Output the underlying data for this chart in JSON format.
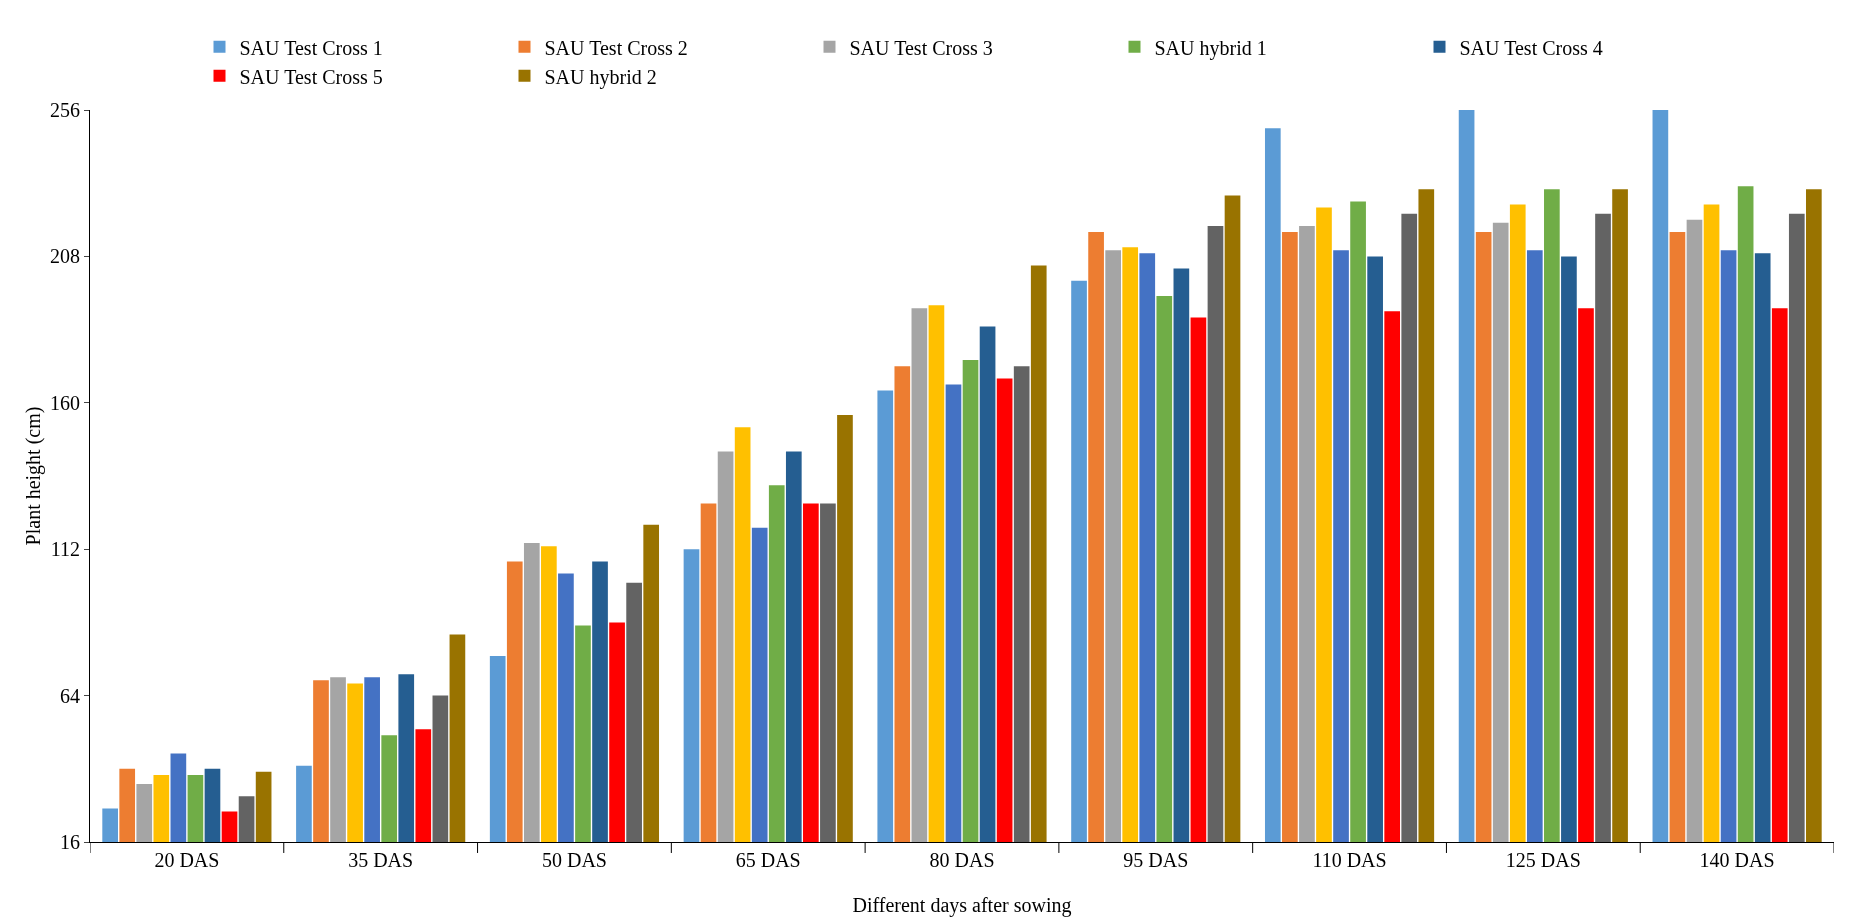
{
  "chart_data": {
    "type": "bar",
    "xlabel": "Different days after sowing",
    "ylabel": "Plant height (cm)",
    "categories": [
      "20 DAS",
      "35 DAS",
      "50 DAS",
      "65 DAS",
      "80 DAS",
      "95 DAS",
      "110 DAS",
      "125 DAS",
      "140 DAS"
    ],
    "ylim": [
      16,
      256
    ],
    "yticks": [
      16,
      64,
      112,
      160,
      208,
      256
    ],
    "grid": false,
    "legend": "top",
    "series": [
      {
        "name": "SAU Test Cross 1",
        "color": "#5b9bd5",
        "values": [
          27,
          41,
          77,
          112,
          164,
          200,
          250,
          256,
          256
        ]
      },
      {
        "name": "SAU Test Cross 2",
        "color": "#ed7d31",
        "values": [
          40,
          69,
          108,
          127,
          172,
          216,
          216,
          216,
          216
        ]
      },
      {
        "name": "SAU Test Cross 3",
        "color": "#a5a5a5",
        "values": [
          35,
          70,
          114,
          144,
          191,
          210,
          218,
          219,
          220
        ]
      },
      {
        "color": "#ffc000",
        "values": [
          38,
          68,
          113,
          152,
          192,
          211,
          224,
          225,
          225
        ]
      },
      {
        "color": "#4472c4",
        "values": [
          45,
          70,
          104,
          119,
          166,
          209,
          210,
          210,
          210
        ]
      },
      {
        "name": "SAU hybrid 1",
        "color": "#70ad47",
        "values": [
          38,
          51,
          87,
          133,
          174,
          195,
          226,
          230,
          231
        ]
      },
      {
        "name": "SAU Test Cross 4",
        "color": "#255e91",
        "values": [
          40,
          71,
          108,
          144,
          185,
          204,
          208,
          208,
          209
        ]
      },
      {
        "name": "SAU Test Cross 5",
        "color": "#ff0000",
        "values": [
          26,
          53,
          88,
          127,
          168,
          188,
          190,
          191,
          191
        ]
      },
      {
        "color": "#636363",
        "values": [
          31,
          64,
          101,
          127,
          172,
          218,
          222,
          222,
          222
        ]
      },
      {
        "name": "SAU hybrid 2",
        "color": "#997300",
        "values": [
          39,
          84,
          120,
          156,
          205,
          228,
          230,
          230,
          230
        ]
      }
    ]
  }
}
